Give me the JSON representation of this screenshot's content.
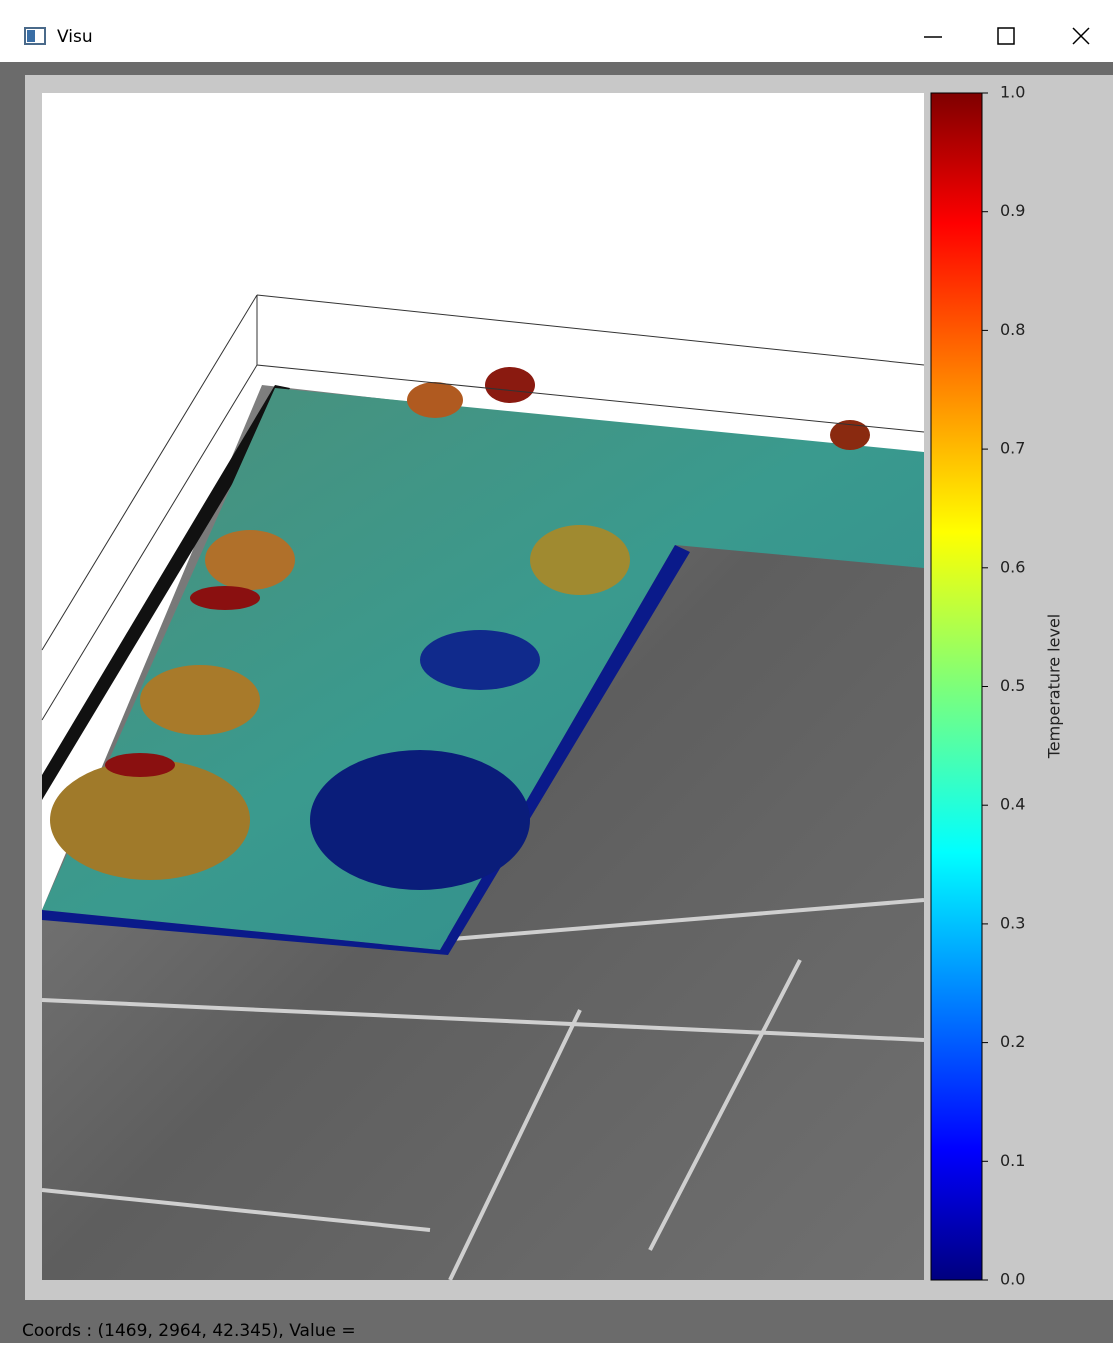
{
  "window": {
    "title": "Visu"
  },
  "colorbar": {
    "label": "Temperature level",
    "lim": [
      0,
      1
    ],
    "ticks": [
      {
        "value": 0,
        "label": "0.0"
      },
      0.1,
      0.2,
      0.3,
      0.4,
      0.5,
      0.6,
      0.7,
      0.8,
      0.9,
      {
        "value": 1,
        "label": "1.0"
      }
    ]
  },
  "status": "Coords : (1469, 2964, 42.345), Value ="
}
